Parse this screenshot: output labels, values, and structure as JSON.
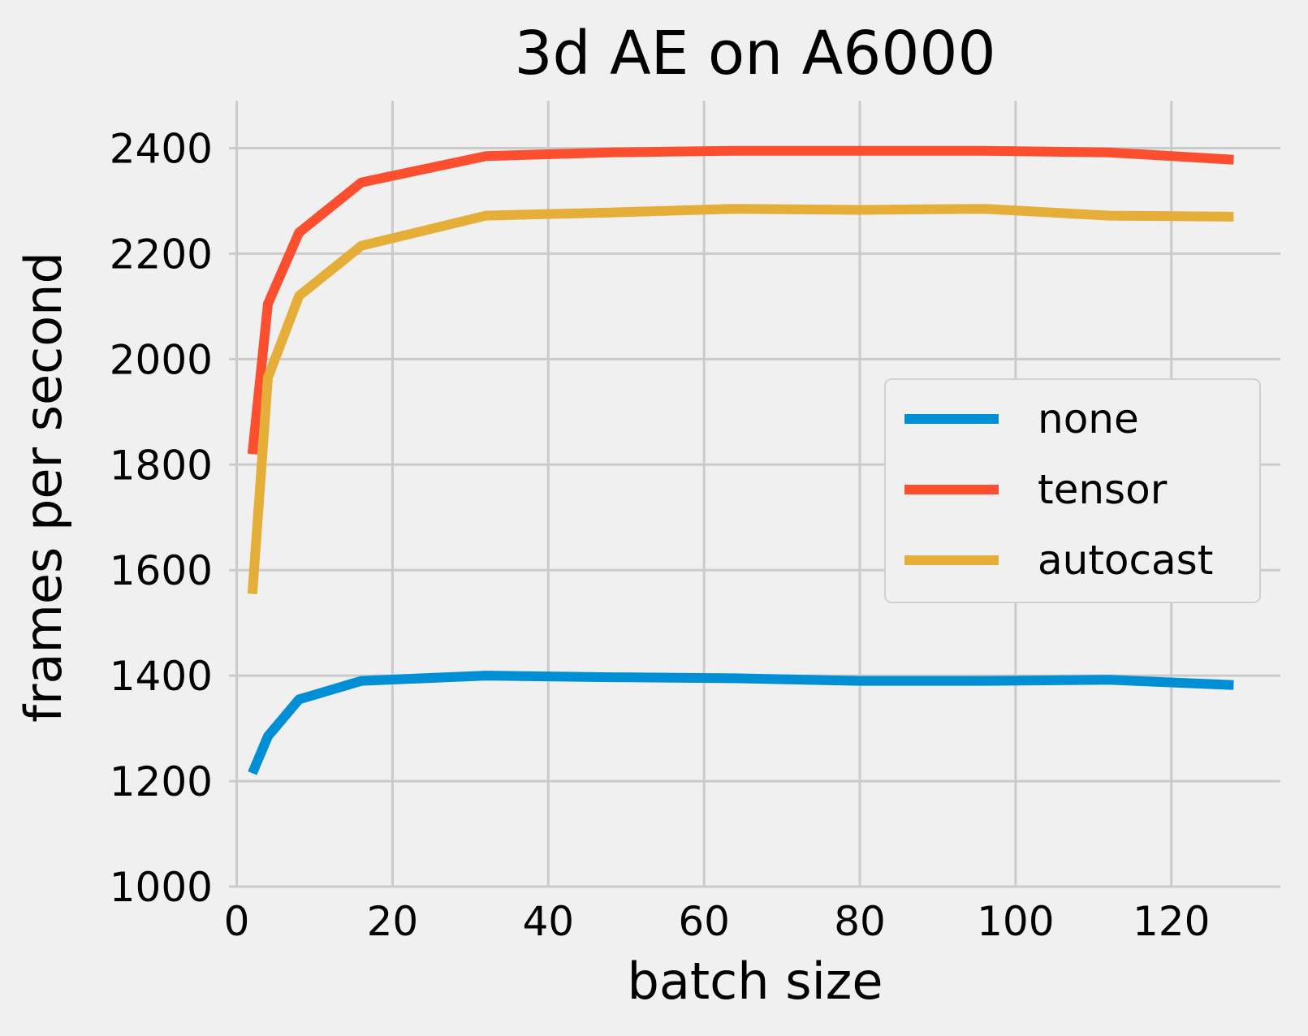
{
  "chart_data": {
    "type": "line",
    "title": "3d AE on A6000",
    "xlabel": "batch size",
    "ylabel": "frames per second",
    "xlim": [
      -1,
      134
    ],
    "ylim": [
      1000,
      2490
    ],
    "xticks": [
      0,
      20,
      40,
      60,
      80,
      100,
      120
    ],
    "yticks": [
      1000,
      1200,
      1400,
      1600,
      1800,
      2000,
      2200,
      2400
    ],
    "xtick_labels": [
      "0",
      "20",
      "40",
      "60",
      "80",
      "100",
      "120"
    ],
    "ytick_labels": [
      "1000",
      "1200",
      "1400",
      "1600",
      "1800",
      "2000",
      "2200",
      "2400"
    ],
    "grid": true,
    "legend_position": "center-right",
    "x": [
      2,
      4,
      8,
      16,
      32,
      48,
      64,
      80,
      96,
      112,
      128
    ],
    "series": [
      {
        "name": "none",
        "color": "#008fd5",
        "values": [
          1215,
          1285,
          1355,
          1390,
          1400,
          1397,
          1395,
          1390,
          1390,
          1392,
          1382
        ]
      },
      {
        "name": "tensor",
        "color": "#fc4f30",
        "values": [
          1820,
          2105,
          2240,
          2335,
          2385,
          2392,
          2395,
          2395,
          2395,
          2392,
          2378
        ]
      },
      {
        "name": "autocast",
        "color": "#e5ae38",
        "values": [
          1555,
          1965,
          2120,
          2215,
          2272,
          2278,
          2285,
          2283,
          2285,
          2272,
          2270
        ]
      }
    ]
  }
}
